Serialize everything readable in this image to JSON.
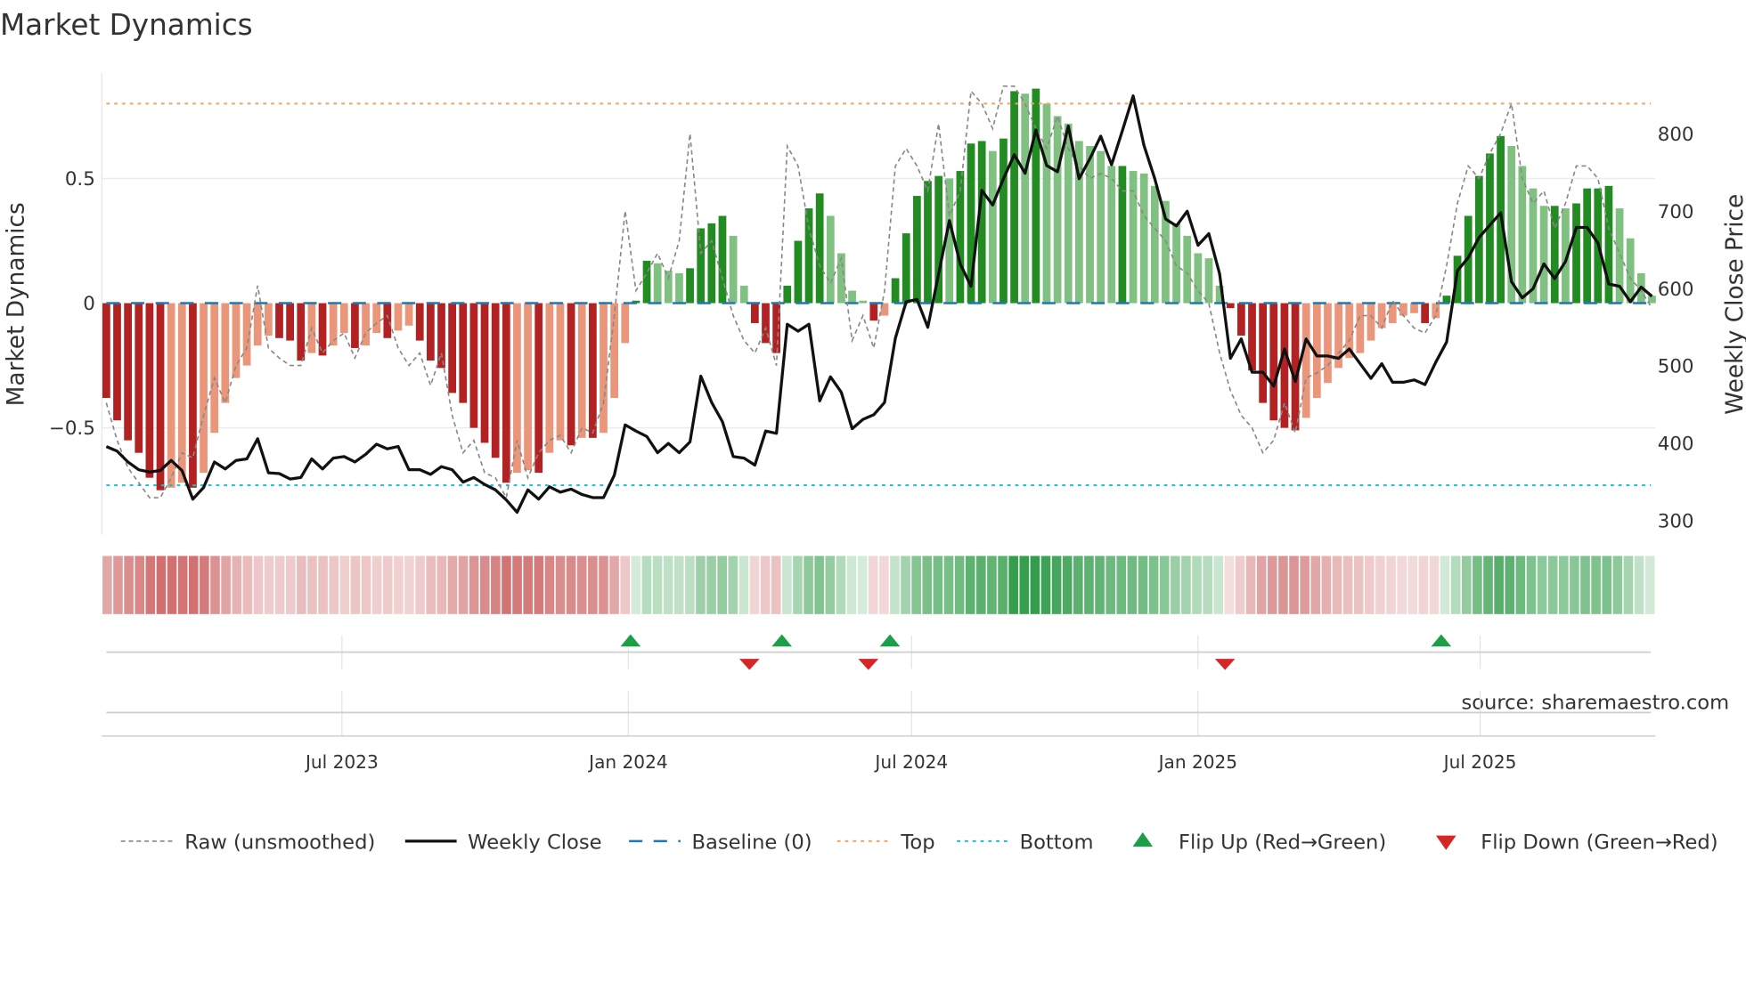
{
  "chart_data": {
    "type": "bar",
    "title": "Market Dynamics",
    "ylabel": "Market Dynamics",
    "y2label": "Weekly Close Price",
    "ylim": [
      -0.93,
      0.93
    ],
    "y2lim": [
      280,
      880
    ],
    "yticks": [
      {
        "v": 0.5,
        "label": "0.5"
      },
      {
        "v": 0,
        "label": "0"
      },
      {
        "v": -0.5,
        "label": "−0.5"
      }
    ],
    "y2ticks": [
      {
        "v": 800,
        "label": "800"
      },
      {
        "v": 700,
        "label": "700"
      },
      {
        "v": 600,
        "label": "600"
      },
      {
        "v": 500,
        "label": "500"
      },
      {
        "v": 400,
        "label": "400"
      },
      {
        "v": 300,
        "label": "300"
      }
    ],
    "xticks": [
      {
        "week": 21.8,
        "label": "Jul 2023"
      },
      {
        "week": 48.3,
        "label": "Jan 2024"
      },
      {
        "week": 74.5,
        "label": "Jul 2024"
      },
      {
        "week": 101,
        "label": "Jan 2025"
      },
      {
        "week": 127.1,
        "label": "Jul 2025"
      }
    ],
    "top_level": 0.8,
    "bottom_level": -0.73,
    "baseline": 0,
    "colors": {
      "dark_red": "#b22222",
      "light_red": "#e9967a",
      "dark_green": "#228b22",
      "light_green": "#80c080",
      "top": "#f4a261",
      "bottom": "#17becf",
      "baseline": "#1f77b4",
      "flip_up": "#1f9e4a",
      "flip_down": "#d62728",
      "price": "#111111",
      "raw": "#888888"
    },
    "momentum": [
      -0.38,
      -0.47,
      -0.55,
      -0.6,
      -0.7,
      -0.75,
      -0.74,
      -0.72,
      -0.74,
      -0.68,
      -0.52,
      -0.4,
      -0.3,
      -0.25,
      -0.17,
      -0.13,
      -0.14,
      -0.15,
      -0.23,
      -0.2,
      -0.21,
      -0.17,
      -0.12,
      -0.18,
      -0.17,
      -0.12,
      -0.14,
      -0.11,
      -0.09,
      -0.15,
      -0.23,
      -0.26,
      -0.36,
      -0.4,
      -0.5,
      -0.56,
      -0.62,
      -0.72,
      -0.68,
      -0.67,
      -0.68,
      -0.6,
      -0.55,
      -0.57,
      -0.54,
      -0.54,
      -0.52,
      -0.38,
      -0.16,
      0.01,
      0.17,
      0.16,
      0.13,
      0.12,
      0.14,
      0.3,
      0.32,
      0.35,
      0.27,
      0.07,
      -0.08,
      -0.16,
      -0.2,
      0.07,
      0.25,
      0.38,
      0.44,
      0.35,
      0.2,
      0.05,
      0.01,
      -0.07,
      -0.05,
      0.1,
      0.28,
      0.43,
      0.49,
      0.51,
      0.5,
      0.53,
      0.64,
      0.65,
      0.61,
      0.66,
      0.85,
      0.84,
      0.86,
      0.8,
      0.75,
      0.72,
      0.65,
      0.63,
      0.61,
      0.55,
      0.55,
      0.53,
      0.52,
      0.47,
      0.41,
      0.32,
      0.27,
      0.2,
      0.18,
      0.07,
      -0.02,
      -0.13,
      -0.27,
      -0.4,
      -0.47,
      -0.5,
      -0.51,
      -0.46,
      -0.38,
      -0.32,
      -0.26,
      -0.22,
      -0.2,
      -0.15,
      -0.1,
      -0.08,
      -0.05,
      -0.04,
      -0.08,
      -0.06,
      0.03,
      0.19,
      0.35,
      0.51,
      0.6,
      0.67,
      0.63,
      0.55,
      0.46,
      0.39,
      0.39,
      0.38,
      0.4,
      0.46,
      0.46,
      0.47,
      0.38,
      0.26,
      0.12,
      0.03
    ],
    "raw": [
      -0.4,
      -0.55,
      -0.66,
      -0.72,
      -0.78,
      -0.78,
      -0.7,
      -0.6,
      -0.62,
      -0.45,
      -0.3,
      -0.4,
      -0.25,
      -0.18,
      0.07,
      -0.18,
      -0.22,
      -0.25,
      -0.25,
      -0.1,
      -0.2,
      -0.15,
      -0.12,
      -0.22,
      -0.12,
      -0.08,
      -0.05,
      -0.18,
      -0.25,
      -0.2,
      -0.33,
      -0.2,
      -0.45,
      -0.6,
      -0.55,
      -0.68,
      -0.7,
      -0.78,
      -0.55,
      -0.7,
      -0.6,
      -0.55,
      -0.53,
      -0.6,
      -0.5,
      -0.52,
      -0.4,
      -0.05,
      0.37,
      0.05,
      0.12,
      0.2,
      0.1,
      0.25,
      0.68,
      0.2,
      0.25,
      0.1,
      -0.05,
      -0.15,
      -0.2,
      -0.1,
      -0.25,
      0.63,
      0.55,
      0.3,
      0.15,
      0.08,
      0.18,
      -0.15,
      -0.05,
      -0.18,
      0.05,
      0.55,
      0.62,
      0.55,
      0.45,
      0.72,
      0.35,
      0.45,
      0.85,
      0.8,
      0.7,
      0.87,
      0.87,
      0.8,
      0.7,
      0.62,
      0.75,
      0.62,
      0.55,
      0.5,
      0.52,
      0.5,
      0.45,
      0.45,
      0.35,
      0.3,
      0.25,
      0.15,
      0.12,
      0.05,
      0.0,
      -0.2,
      -0.35,
      -0.45,
      -0.5,
      -0.6,
      -0.55,
      -0.4,
      -0.52,
      -0.3,
      -0.28,
      -0.25,
      -0.2,
      -0.15,
      -0.05,
      -0.05,
      -0.1,
      0.01,
      -0.05,
      -0.1,
      -0.12,
      -0.05,
      0.15,
      0.4,
      0.55,
      0.5,
      0.6,
      0.68,
      0.8,
      0.5,
      0.4,
      0.45,
      0.3,
      0.4,
      0.55,
      0.55,
      0.5,
      0.3,
      0.2,
      0.1,
      0.05,
      -0.02
    ],
    "price": [
      396,
      390,
      376,
      366,
      363,
      365,
      378,
      365,
      328,
      343,
      376,
      367,
      378,
      380,
      406,
      362,
      361,
      354,
      356,
      380,
      367,
      381,
      383,
      376,
      386,
      399,
      393,
      396,
      366,
      366,
      360,
      370,
      366,
      350,
      356,
      347,
      340,
      327,
      311,
      340,
      328,
      344,
      337,
      341,
      334,
      330,
      330,
      359,
      424,
      416,
      409,
      388,
      400,
      388,
      402,
      487,
      453,
      428,
      383,
      381,
      372,
      416,
      413,
      554,
      545,
      554,
      455,
      486,
      466,
      419,
      431,
      437,
      453,
      536,
      583,
      586,
      550,
      619,
      688,
      632,
      603,
      727,
      708,
      742,
      773,
      749,
      805,
      759,
      751,
      810,
      742,
      768,
      797,
      760,
      804,
      849,
      785,
      742,
      690,
      681,
      700,
      656,
      671,
      619,
      510,
      535,
      492,
      492,
      474,
      522,
      480,
      535,
      513,
      513,
      510,
      522,
      503,
      484,
      503,
      479,
      479,
      482,
      476,
      505,
      531,
      623,
      640,
      666,
      682,
      698,
      609,
      588,
      600,
      632,
      613,
      635,
      679,
      679,
      659,
      606,
      603,
      583,
      602,
      590
    ],
    "flip_up_label": "Flip Up (Red→Green)",
    "flip_down_label": "Flip Down (Green→Red)",
    "legend": [
      {
        "label": "Raw (unsmoothed)",
        "kind": "raw"
      },
      {
        "label": "Weekly Close",
        "kind": "price"
      },
      {
        "label": "Baseline (0)",
        "kind": "baseline"
      },
      {
        "label": "Top",
        "kind": "top"
      },
      {
        "label": "Bottom",
        "kind": "bottom"
      },
      {
        "label": "Flip Up (Red→Green)",
        "kind": "up"
      },
      {
        "label": "Flip Down (Green→Red)",
        "kind": "down"
      }
    ],
    "legend_placement": "bottom",
    "source": "source: sharemaestro.com"
  }
}
